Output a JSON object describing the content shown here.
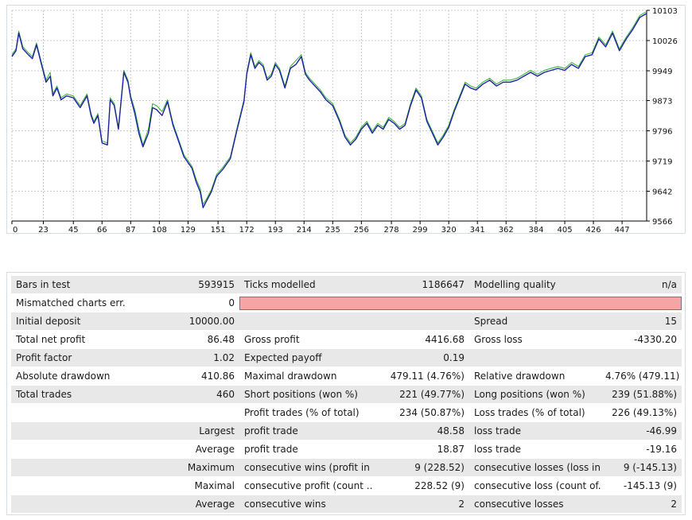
{
  "chart_data": {
    "type": "line",
    "title": "",
    "xlabel": "",
    "ylabel": "",
    "xlim": [
      0,
      465
    ],
    "ylim": [
      9566,
      10103
    ],
    "x_ticks": [
      0,
      23,
      45,
      66,
      87,
      108,
      129,
      151,
      172,
      193,
      214,
      235,
      256,
      278,
      299,
      320,
      341,
      362,
      384,
      405,
      426,
      447
    ],
    "y_ticks": [
      9566,
      9642,
      9719,
      9796,
      9873,
      9949,
      10026,
      10103
    ],
    "grid": true,
    "colors": {
      "balance": "#1f22a8",
      "equity": "#2fb02f",
      "grid": "#c8c8c8",
      "axis": "#000000"
    },
    "series": [
      {
        "key": "balance",
        "x": [
          0,
          3,
          5,
          8,
          12,
          15,
          18,
          22,
          25,
          28,
          30,
          33,
          36,
          40,
          45,
          50,
          55,
          58,
          60,
          63,
          66,
          70,
          72,
          75,
          78,
          82,
          85,
          87,
          90,
          93,
          96,
          100,
          103,
          106,
          110,
          114,
          118,
          122,
          126,
          129,
          132,
          135,
          138,
          140,
          143,
          146,
          150,
          155,
          160,
          165,
          170,
          172,
          175,
          178,
          181,
          184,
          187,
          190,
          193,
          196,
          200,
          204,
          208,
          212,
          215,
          218,
          222,
          226,
          230,
          235,
          240,
          244,
          248,
          252,
          256,
          260,
          264,
          268,
          272,
          276,
          280,
          284,
          288,
          292,
          296,
          300,
          304,
          308,
          312,
          316,
          320,
          324,
          328,
          332,
          336,
          340,
          345,
          350,
          355,
          360,
          365,
          370,
          375,
          380,
          385,
          390,
          395,
          400,
          405,
          410,
          415,
          420,
          425,
          430,
          435,
          440,
          445,
          450,
          455,
          460,
          465
        ],
        "y": [
          9985,
          10000,
          10045,
          10005,
          9990,
          9980,
          10015,
          9960,
          9920,
          9935,
          9885,
          9905,
          9875,
          9885,
          9880,
          9855,
          9885,
          9835,
          9815,
          9835,
          9765,
          9760,
          9875,
          9860,
          9800,
          9945,
          9920,
          9880,
          9840,
          9790,
          9755,
          9790,
          9855,
          9850,
          9835,
          9870,
          9810,
          9770,
          9730,
          9715,
          9700,
          9665,
          9640,
          9600,
          9620,
          9640,
          9680,
          9700,
          9725,
          9800,
          9870,
          9940,
          9990,
          9955,
          9970,
          9960,
          9925,
          9935,
          9965,
          9950,
          9905,
          9955,
          9965,
          9985,
          9940,
          9925,
          9910,
          9895,
          9875,
          9860,
          9820,
          9780,
          9760,
          9775,
          9800,
          9815,
          9790,
          9810,
          9800,
          9825,
          9815,
          9800,
          9810,
          9860,
          9900,
          9880,
          9820,
          9790,
          9760,
          9780,
          9805,
          9845,
          9880,
          9915,
          9905,
          9900,
          9915,
          9925,
          9910,
          9920,
          9920,
          9925,
          9935,
          9945,
          9935,
          9945,
          9950,
          9955,
          9950,
          9965,
          9955,
          9985,
          9990,
          10030,
          10010,
          10045,
          10000,
          10030,
          10055,
          10085,
          10095
        ]
      },
      {
        "key": "equity",
        "x": [
          0,
          3,
          5,
          8,
          12,
          15,
          18,
          22,
          25,
          28,
          30,
          33,
          36,
          40,
          45,
          50,
          55,
          58,
          60,
          63,
          66,
          70,
          72,
          75,
          78,
          82,
          85,
          87,
          90,
          93,
          96,
          100,
          103,
          106,
          110,
          114,
          118,
          122,
          126,
          129,
          132,
          135,
          138,
          140,
          143,
          146,
          150,
          155,
          160,
          165,
          170,
          172,
          175,
          178,
          181,
          184,
          187,
          190,
          193,
          196,
          200,
          204,
          208,
          212,
          215,
          218,
          222,
          226,
          230,
          235,
          240,
          244,
          248,
          252,
          256,
          260,
          264,
          268,
          272,
          276,
          280,
          284,
          288,
          292,
          296,
          300,
          304,
          308,
          312,
          316,
          320,
          324,
          328,
          332,
          336,
          340,
          345,
          350,
          355,
          360,
          365,
          370,
          375,
          380,
          385,
          390,
          395,
          400,
          405,
          410,
          415,
          420,
          425,
          430,
          435,
          440,
          445,
          450,
          455,
          460,
          465
        ],
        "y": [
          9990,
          10005,
          10050,
          10010,
          9995,
          9985,
          10020,
          9965,
          9925,
          9945,
          9890,
          9910,
          9880,
          9890,
          9885,
          9860,
          9890,
          9840,
          9820,
          9840,
          9770,
          9765,
          9880,
          9865,
          9805,
          9950,
          9925,
          9885,
          9850,
          9800,
          9760,
          9800,
          9865,
          9860,
          9845,
          9875,
          9815,
          9775,
          9735,
          9720,
          9705,
          9672,
          9648,
          9608,
          9625,
          9645,
          9685,
          9705,
          9730,
          9805,
          9875,
          9945,
          9995,
          9960,
          9975,
          9965,
          9930,
          9940,
          9970,
          9955,
          9910,
          9960,
          9975,
          9990,
          9945,
          9930,
          9915,
          9900,
          9880,
          9865,
          9825,
          9785,
          9765,
          9780,
          9805,
          9820,
          9795,
          9815,
          9805,
          9830,
          9820,
          9805,
          9815,
          9865,
          9905,
          9885,
          9825,
          9795,
          9765,
          9785,
          9810,
          9850,
          9885,
          9920,
          9910,
          9905,
          9920,
          9930,
          9915,
          9925,
          9925,
          9930,
          9940,
          9950,
          9940,
          9950,
          9955,
          9960,
          9955,
          9970,
          9960,
          9990,
          9995,
          10035,
          10015,
          10050,
          10005,
          10035,
          10060,
          10090,
          10100
        ]
      }
    ]
  },
  "report": {
    "rows": [
      {
        "shade": true,
        "cells": [
          "Bars in test",
          "593915",
          "Ticks modelled",
          "1186647",
          "Modelling quality",
          "n/a"
        ]
      },
      {
        "shade": false,
        "cells": [
          "Mismatched charts err...",
          "0"
        ],
        "pink": true
      },
      {
        "shade": true,
        "cells": [
          "Initial deposit",
          "10000.00",
          "",
          "",
          "Spread",
          "15"
        ]
      },
      {
        "shade": false,
        "cells": [
          "Total net profit",
          "86.48",
          "Gross profit",
          "4416.68",
          "Gross loss",
          "-4330.20"
        ]
      },
      {
        "shade": true,
        "cells": [
          "Profit factor",
          "1.02",
          "Expected payoff",
          "0.19",
          "",
          ""
        ]
      },
      {
        "shade": false,
        "cells": [
          "Absolute drawdown",
          "410.86",
          "Maximal drawdown",
          "479.11 (4.76%)",
          "Relative drawdown",
          "4.76% (479.11)"
        ]
      },
      {
        "shade": true,
        "cells": [
          "Total trades",
          "460",
          "Short positions (won %)",
          "221 (49.77%)",
          "Long positions (won %)",
          "239 (51.88%)"
        ]
      },
      {
        "shade": false,
        "cells": [
          "",
          "",
          "Profit trades (% of total)",
          "234 (50.87%)",
          "Loss trades (% of total)",
          "226 (49.13%)"
        ]
      },
      {
        "shade": true,
        "cells": [
          "",
          "Largest",
          "profit trade",
          "48.58",
          "loss trade",
          "-46.99"
        ]
      },
      {
        "shade": false,
        "cells": [
          "",
          "Average",
          "profit trade",
          "18.87",
          "loss trade",
          "-19.16"
        ]
      },
      {
        "shade": true,
        "cells": [
          "",
          "Maximum",
          "consecutive wins (profit in ...",
          "9 (228.52)",
          "consecutive losses (loss in ...",
          "9 (-145.13)"
        ]
      },
      {
        "shade": false,
        "cells": [
          "",
          "Maximal",
          "consecutive profit (count ...",
          "228.52 (9)",
          "consecutive loss (count of...",
          "-145.13 (9)"
        ]
      },
      {
        "shade": true,
        "cells": [
          "",
          "Average",
          "consecutive wins",
          "2",
          "consecutive losses",
          "2"
        ]
      }
    ]
  }
}
